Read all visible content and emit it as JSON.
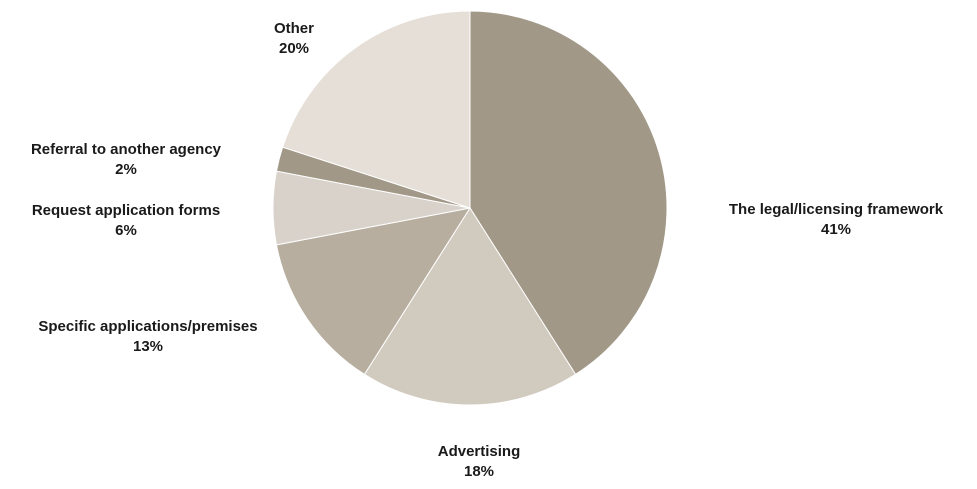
{
  "chart_data": {
    "type": "pie",
    "start_angle_deg": 0,
    "direction": "clockwise",
    "slices": [
      {
        "label": "The legal/licensing framework",
        "value": 41,
        "value_text": "41%",
        "color": "#a29888"
      },
      {
        "label": "Advertising",
        "value": 18,
        "value_text": "18%",
        "color": "#d1cabf"
      },
      {
        "label": "Specific applications/premises",
        "value": 13,
        "value_text": "13%",
        "color": "#b7ae9f"
      },
      {
        "label": "Request application forms",
        "value": 6,
        "value_text": "6%",
        "color": "#d8d2ca"
      },
      {
        "label": "Referral to another agency",
        "value": 2,
        "value_text": "2%",
        "color": "#a29888"
      },
      {
        "label": "Other",
        "value": 20,
        "value_text": "20%",
        "color": "#e5dfd8"
      }
    ],
    "title": "",
    "legend": "none"
  }
}
